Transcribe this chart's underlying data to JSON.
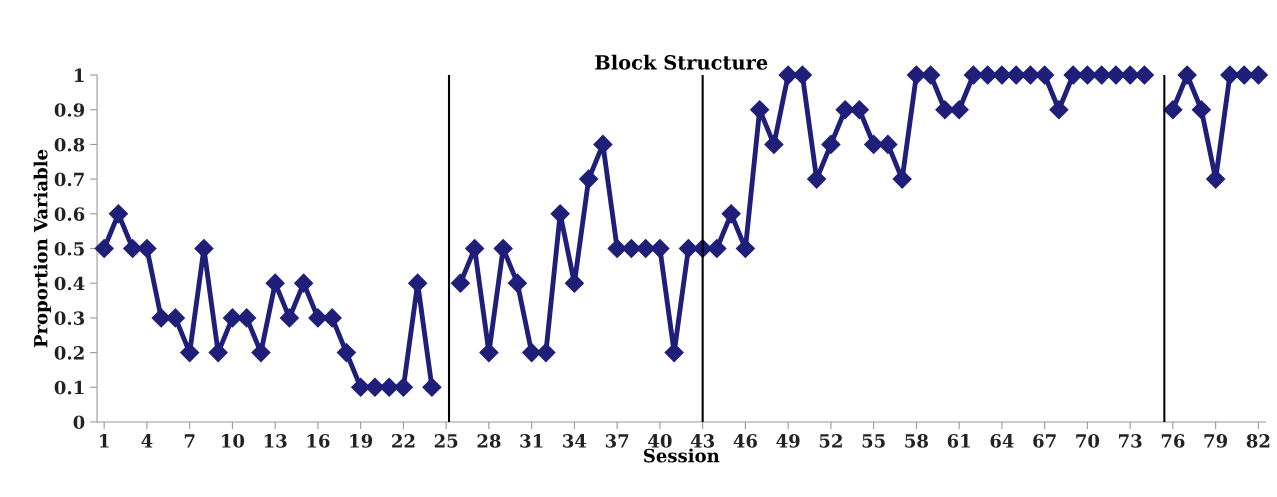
{
  "chart_data": {
    "type": "line",
    "title": "Block Structure",
    "xlabel": "Session",
    "ylabel": "Proportion Variable",
    "x": [
      1,
      2,
      3,
      4,
      5,
      6,
      7,
      8,
      9,
      10,
      11,
      12,
      13,
      14,
      15,
      16,
      17,
      18,
      19,
      20,
      21,
      22,
      23,
      24,
      25,
      26,
      27,
      28,
      29,
      30,
      31,
      32,
      33,
      34,
      35,
      36,
      37,
      38,
      39,
      40,
      41,
      42,
      43,
      44,
      45,
      46,
      47,
      48,
      49,
      50,
      51,
      52,
      53,
      54,
      55,
      56,
      57,
      58,
      59,
      60,
      61,
      62,
      63,
      64,
      65,
      66,
      67,
      68,
      69,
      70,
      71,
      72,
      73,
      74,
      75,
      76,
      77,
      78,
      79,
      80,
      81,
      82
    ],
    "series": [
      {
        "color": "#1f1f7a",
        "values": [
          0.5,
          0.6,
          0.5,
          0.5,
          0.3,
          0.3,
          0.2,
          0.5,
          0.2,
          0.3,
          0.3,
          0.2,
          0.4,
          0.3,
          0.4,
          0.3,
          0.3,
          0.2,
          0.1,
          0.1,
          0.1,
          0.1,
          0.4,
          0.1,
          null,
          0.4,
          0.5,
          0.2,
          0.5,
          0.4,
          0.2,
          0.2,
          0.6,
          0.4,
          0.7,
          0.8,
          0.5,
          0.5,
          0.5,
          0.5,
          0.2,
          0.5,
          0.5,
          0.5,
          0.6,
          0.5,
          0.9,
          0.8,
          1,
          1,
          0.7,
          0.8,
          0.9,
          0.9,
          0.8,
          0.8,
          0.7,
          1,
          1,
          0.9,
          0.9,
          1,
          1,
          1,
          1,
          1,
          1,
          0.9,
          1,
          1,
          1,
          1,
          1,
          1,
          null,
          0.9,
          1,
          0.9,
          0.7,
          1,
          1,
          1
        ]
      }
    ],
    "xlim": [
      0.5,
      82.5
    ],
    "xticks": [
      1,
      4,
      7,
      10,
      13,
      16,
      19,
      22,
      25,
      28,
      31,
      34,
      37,
      40,
      43,
      46,
      49,
      52,
      55,
      58,
      61,
      64,
      67,
      70,
      73,
      76,
      79,
      82
    ],
    "ylim": [
      0,
      1
    ],
    "yticks": [
      0,
      0.1,
      0.2,
      0.3,
      0.4,
      0.5,
      0.6,
      0.7,
      0.8,
      0.9,
      1
    ],
    "ref_lines": [
      {
        "axis": "x",
        "value": 25.2,
        "color": "#000000"
      },
      {
        "axis": "x",
        "value": 43,
        "color": "#000000"
      },
      {
        "axis": "x",
        "value": 75.4,
        "color": "#000000"
      }
    ],
    "marker": "diamond",
    "line_style": "solid",
    "grid": false,
    "legend": false
  }
}
